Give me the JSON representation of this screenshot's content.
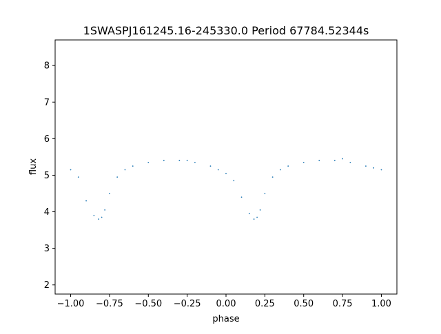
{
  "chart_data": {
    "type": "scatter",
    "title": "1SWASPJ161245.16-245330.0 Period 67784.52344s",
    "xlabel": "phase",
    "ylabel": "flux",
    "xlim": [
      -1.1,
      1.1
    ],
    "ylim": [
      1.75,
      8.7
    ],
    "x_ticks": [
      -1.0,
      -0.75,
      -0.5,
      -0.25,
      0.0,
      0.25,
      0.5,
      0.75,
      1.0
    ],
    "x_tick_labels": [
      "−1.00",
      "−0.75",
      "−0.50",
      "−0.25",
      "0.00",
      "0.25",
      "0.50",
      "0.75",
      "1.00"
    ],
    "y_ticks": [
      2,
      3,
      4,
      5,
      6,
      7,
      8
    ],
    "y_tick_labels": [
      "2",
      "3",
      "4",
      "5",
      "6",
      "7",
      "8"
    ],
    "grid": false,
    "marker_color": "#1f77b4",
    "series": [
      {
        "x": [
          -1.0,
          -0.95,
          -0.9,
          -0.85,
          -0.82,
          -0.8,
          -0.78,
          -0.75,
          -0.7,
          -0.65,
          -0.6,
          -0.5,
          -0.4,
          -0.3,
          -0.25,
          -0.2,
          -0.1,
          -0.05,
          0.0,
          0.05,
          0.1,
          0.15,
          0.18,
          0.2,
          0.22,
          0.25,
          0.3,
          0.35,
          0.4,
          0.5,
          0.6,
          0.7,
          0.75,
          0.8,
          0.9,
          0.95,
          1.0
        ],
        "y": [
          5.15,
          4.95,
          4.3,
          3.9,
          3.8,
          3.85,
          4.05,
          4.5,
          4.95,
          5.15,
          5.25,
          5.35,
          5.4,
          5.4,
          5.4,
          5.35,
          5.25,
          5.15,
          5.05,
          4.85,
          4.4,
          3.95,
          3.8,
          3.85,
          4.05,
          4.5,
          4.95,
          5.15,
          5.25,
          5.35,
          5.4,
          5.4,
          5.45,
          5.35,
          5.25,
          5.2,
          5.15
        ]
      }
    ]
  }
}
